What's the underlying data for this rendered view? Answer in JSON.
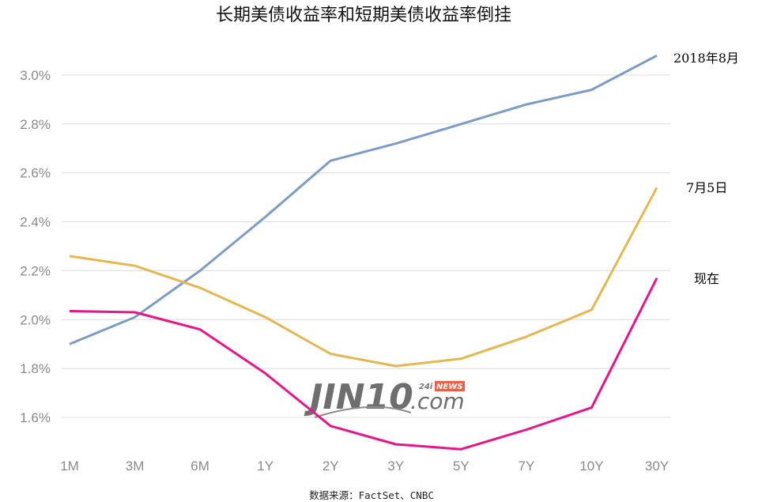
{
  "chart_data": {
    "type": "line",
    "title": "长期美债收益率和短期美债收益率倒挂",
    "source": "数据来源：FactSet、CNBC",
    "categories": [
      "1M",
      "3M",
      "6M",
      "1Y",
      "2Y",
      "3Y",
      "5Y",
      "7Y",
      "10Y",
      "30Y"
    ],
    "yticks": [
      "3.0%",
      "2.8%",
      "2.6%",
      "2.4%",
      "2.2%",
      "2.0%",
      "1.8%",
      "1.6%"
    ],
    "ylim": [
      1.5,
      3.1
    ],
    "grid": true,
    "series": [
      {
        "name": "2018年8月",
        "color": "#7b9cc7",
        "values": [
          1.9,
          2.01,
          2.2,
          2.42,
          2.65,
          2.72,
          2.8,
          2.88,
          2.94,
          3.08
        ]
      },
      {
        "name": "7月5日",
        "color": "#e5b84f",
        "values": [
          2.26,
          2.22,
          2.13,
          2.01,
          1.86,
          1.81,
          1.84,
          1.93,
          2.04,
          2.54
        ]
      },
      {
        "name": "现在",
        "color": "#e8158a",
        "values": [
          2.035,
          2.03,
          1.96,
          1.78,
          1.565,
          1.49,
          1.47,
          1.55,
          1.64,
          2.17
        ]
      }
    ]
  },
  "watermark": {
    "text": "JIN10",
    "suffix": ".com",
    "badge_prefix": "24i",
    "badge": "NEWS"
  }
}
